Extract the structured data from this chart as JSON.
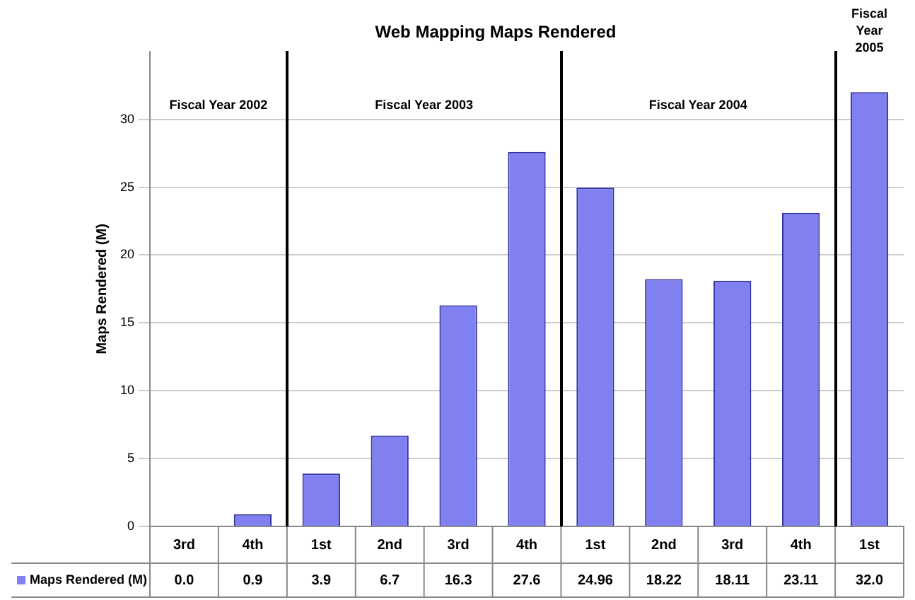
{
  "chart_data": {
    "type": "bar",
    "title": "Web Mapping Maps Rendered",
    "ylabel": "Maps Rendered (M)",
    "categories": [
      "3rd",
      "4th",
      "1st",
      "2nd",
      "3rd",
      "4th",
      "1st",
      "2nd",
      "3rd",
      "4th",
      "1st"
    ],
    "series": [
      {
        "name": "Maps Rendered (M)",
        "color": "#8080f0",
        "values": [
          0.0,
          0.9,
          3.9,
          6.7,
          16.3,
          27.6,
          24.96,
          18.22,
          18.11,
          23.11,
          32.0
        ],
        "value_labels": [
          "0.0",
          "0.9",
          "3.9",
          "6.7",
          "16.3",
          "27.6",
          "24.96",
          "18.22",
          "18.11",
          "23.11",
          "32.0"
        ]
      }
    ],
    "annotations": [
      "Fiscal Year 2002",
      "Fiscal Year 2003",
      "Fiscal Year 2004",
      "Fiscal Year 2005"
    ],
    "ylim": [
      0,
      35
    ],
    "yticks": [
      0,
      5,
      10,
      15,
      20,
      25,
      30
    ],
    "grid": "y",
    "legend": "bottom",
    "data_labels": true
  }
}
